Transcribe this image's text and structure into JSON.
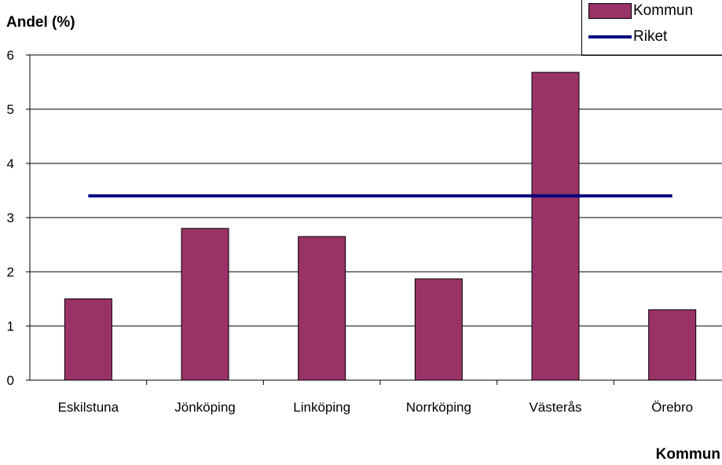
{
  "chart_data": {
    "type": "bar",
    "ylabel": "Andel (%)",
    "xlabel": "Kommun",
    "categories": [
      "Eskilstuna",
      "Jönköping",
      "Linköping",
      "Norrköping",
      "Västerås",
      "Örebro"
    ],
    "series": [
      {
        "name": "Kommun",
        "type": "bar",
        "values": [
          1.5,
          2.8,
          2.65,
          1.87,
          5.68,
          1.3
        ],
        "color": "#993366"
      },
      {
        "name": "Riket",
        "type": "line",
        "values": [
          3.4,
          3.4,
          3.4,
          3.4,
          3.4,
          3.4
        ],
        "color": "#000080"
      }
    ],
    "ylim": [
      0,
      6
    ],
    "yticks": [
      0,
      1,
      2,
      3,
      4,
      5,
      6
    ],
    "grid": true,
    "legend": "top-right"
  }
}
